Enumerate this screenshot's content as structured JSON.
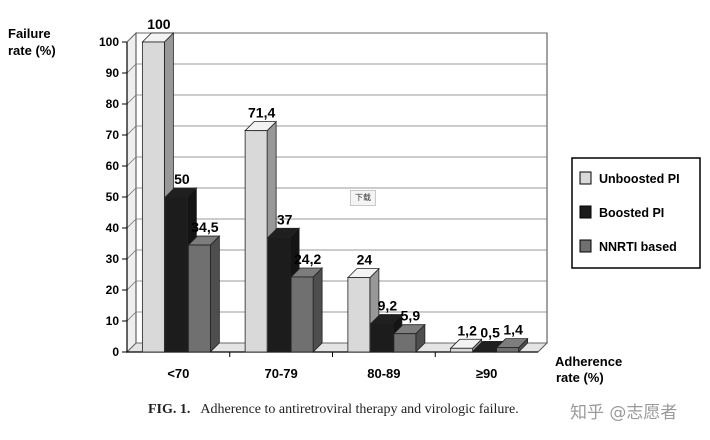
{
  "chart_data": {
    "type": "bar",
    "ylabel": "Failure rate (%)",
    "ylabel_lines": [
      "Failure",
      "rate (%)"
    ],
    "xlabel": "Adherence rate (%)",
    "xlabel_lines": [
      "Adherence",
      "rate (%)"
    ],
    "categories": [
      "<70",
      "70-79",
      "80-89",
      "≥90"
    ],
    "ylim": [
      0,
      100
    ],
    "yticks": [
      0,
      10,
      20,
      30,
      40,
      50,
      60,
      70,
      80,
      90,
      100
    ],
    "grid": true,
    "legend_position": "right",
    "series": [
      {
        "name": "Unboosted PI",
        "values": [
          100,
          71.4,
          24,
          1.2
        ],
        "labels": [
          "100",
          "71,4",
          "24",
          "1,2"
        ],
        "color": "#d9d9d9"
      },
      {
        "name": "Boosted PI",
        "values": [
          50,
          37,
          9.2,
          0.5
        ],
        "labels": [
          "50",
          "37",
          "9,2",
          "0,5"
        ],
        "color": "#1c1c1c"
      },
      {
        "name": "NNRTI based",
        "values": [
          34.5,
          24.2,
          5.9,
          1.4
        ],
        "labels": [
          "34,5",
          "24,2",
          "5,9",
          "1,4"
        ],
        "color": "#707070"
      }
    ]
  },
  "caption": {
    "figure_label": "FIG. 1.",
    "text": "Adherence to antiretroviral therapy and virologic failure."
  },
  "overlay": {
    "tooltip": "下载",
    "watermark": "知乎 @志愿者"
  }
}
